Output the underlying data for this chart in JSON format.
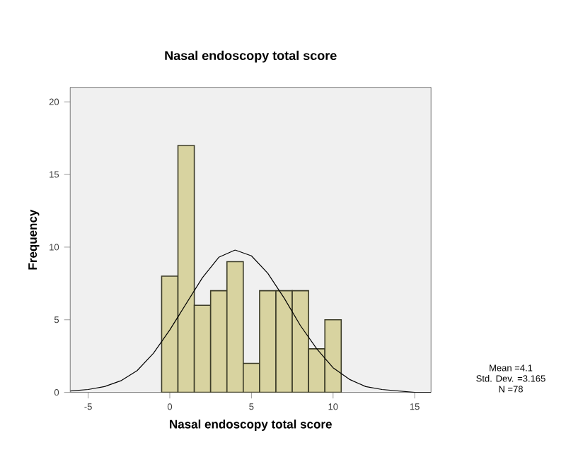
{
  "chart_data": {
    "type": "histogram",
    "title": "Nasal endoscopy total score",
    "xlabel": "Nasal endoscopy total score",
    "ylabel": "Frequency",
    "xlim": [
      -6.1,
      16
    ],
    "ylim": [
      0,
      21
    ],
    "xticks": [
      -5,
      0,
      5,
      10,
      15
    ],
    "yticks": [
      0,
      5,
      10,
      15,
      20
    ],
    "grid": false,
    "series": [
      {
        "color": "#d8d3a0",
        "bins": [
          -0.5,
          0.5,
          1.5,
          2.5,
          3.5,
          4.5,
          5.5,
          6.5,
          7.5,
          8.5,
          9.5,
          10.5
        ],
        "values": [
          8,
          17,
          6,
          7,
          9,
          2,
          7,
          7,
          7,
          3,
          5
        ]
      },
      {
        "type": "line",
        "color": "#000000",
        "x": [
          -6.1,
          -5,
          -4,
          -3,
          -2,
          -1,
          0,
          1,
          2,
          3,
          4,
          5,
          6,
          7,
          8,
          9,
          10,
          11,
          12,
          13,
          14,
          15,
          16
        ],
        "values": [
          0.1,
          0.2,
          0.4,
          0.8,
          1.5,
          2.7,
          4.3,
          6.1,
          7.9,
          9.3,
          9.8,
          9.4,
          8.2,
          6.5,
          4.6,
          3.0,
          1.7,
          0.9,
          0.4,
          0.2,
          0.1,
          0.0,
          0.0
        ]
      }
    ],
    "annotations": [
      "Mean =4.1",
      "Std. Dev. =3.165",
      "N =78"
    ]
  }
}
